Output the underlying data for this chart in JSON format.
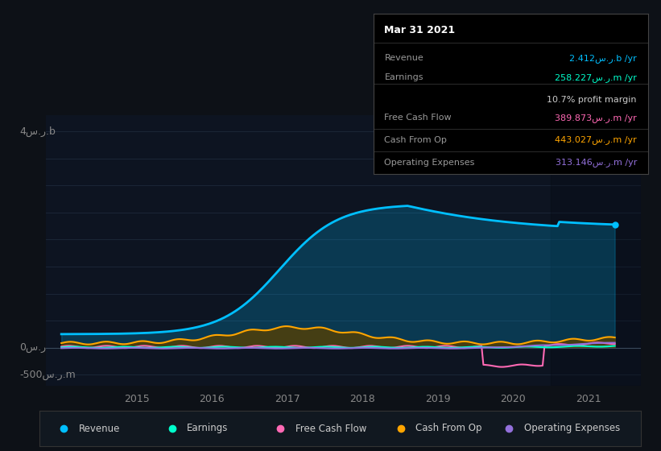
{
  "background_color": "#0d1117",
  "plot_bg_color": "#0d1421",
  "title": "Mar 31 2021",
  "y_label_top": "4س.ر.b",
  "y_label_zero": "0س.ر",
  "y_label_bottom": "-500س.ر.m",
  "info_box_title": "Mar 31 2021",
  "info_rows": [
    {
      "label": "Revenue",
      "value": "2.412س.ر.b /yr",
      "color": "#00bfff"
    },
    {
      "label": "Earnings",
      "value": "258.227س.ر.m /yr",
      "color": "#00ffcc"
    },
    {
      "label": "",
      "value": "10.7% profit margin",
      "color": "#cccccc"
    },
    {
      "label": "Free Cash Flow",
      "value": "389.873س.ر.m /yr",
      "color": "#ff69b4"
    },
    {
      "label": "Cash From Op",
      "value": "443.027س.ر.m /yr",
      "color": "#ffa500"
    },
    {
      "label": "Operating Expenses",
      "value": "313.146س.ر.m /yr",
      "color": "#9370db"
    }
  ],
  "legend": [
    {
      "label": "Revenue",
      "color": "#00bfff"
    },
    {
      "label": "Earnings",
      "color": "#00ffcc"
    },
    {
      "label": "Free Cash Flow",
      "color": "#ff69b4"
    },
    {
      "label": "Cash From Op",
      "color": "#ffa500"
    },
    {
      "label": "Operating Expenses",
      "color": "#9370db"
    }
  ],
  "colors": {
    "revenue": "#00bfff",
    "earnings": "#00ffcc",
    "free_cash_flow": "#ff69b4",
    "cash_from_op": "#ffa500",
    "operating_expenses": "#9370db"
  },
  "revenue_fill_color": "#00bfff",
  "cop_fill_color": "#5a4000",
  "ylim": [
    -700,
    4300
  ],
  "xlim": [
    2013.8,
    2021.7
  ]
}
